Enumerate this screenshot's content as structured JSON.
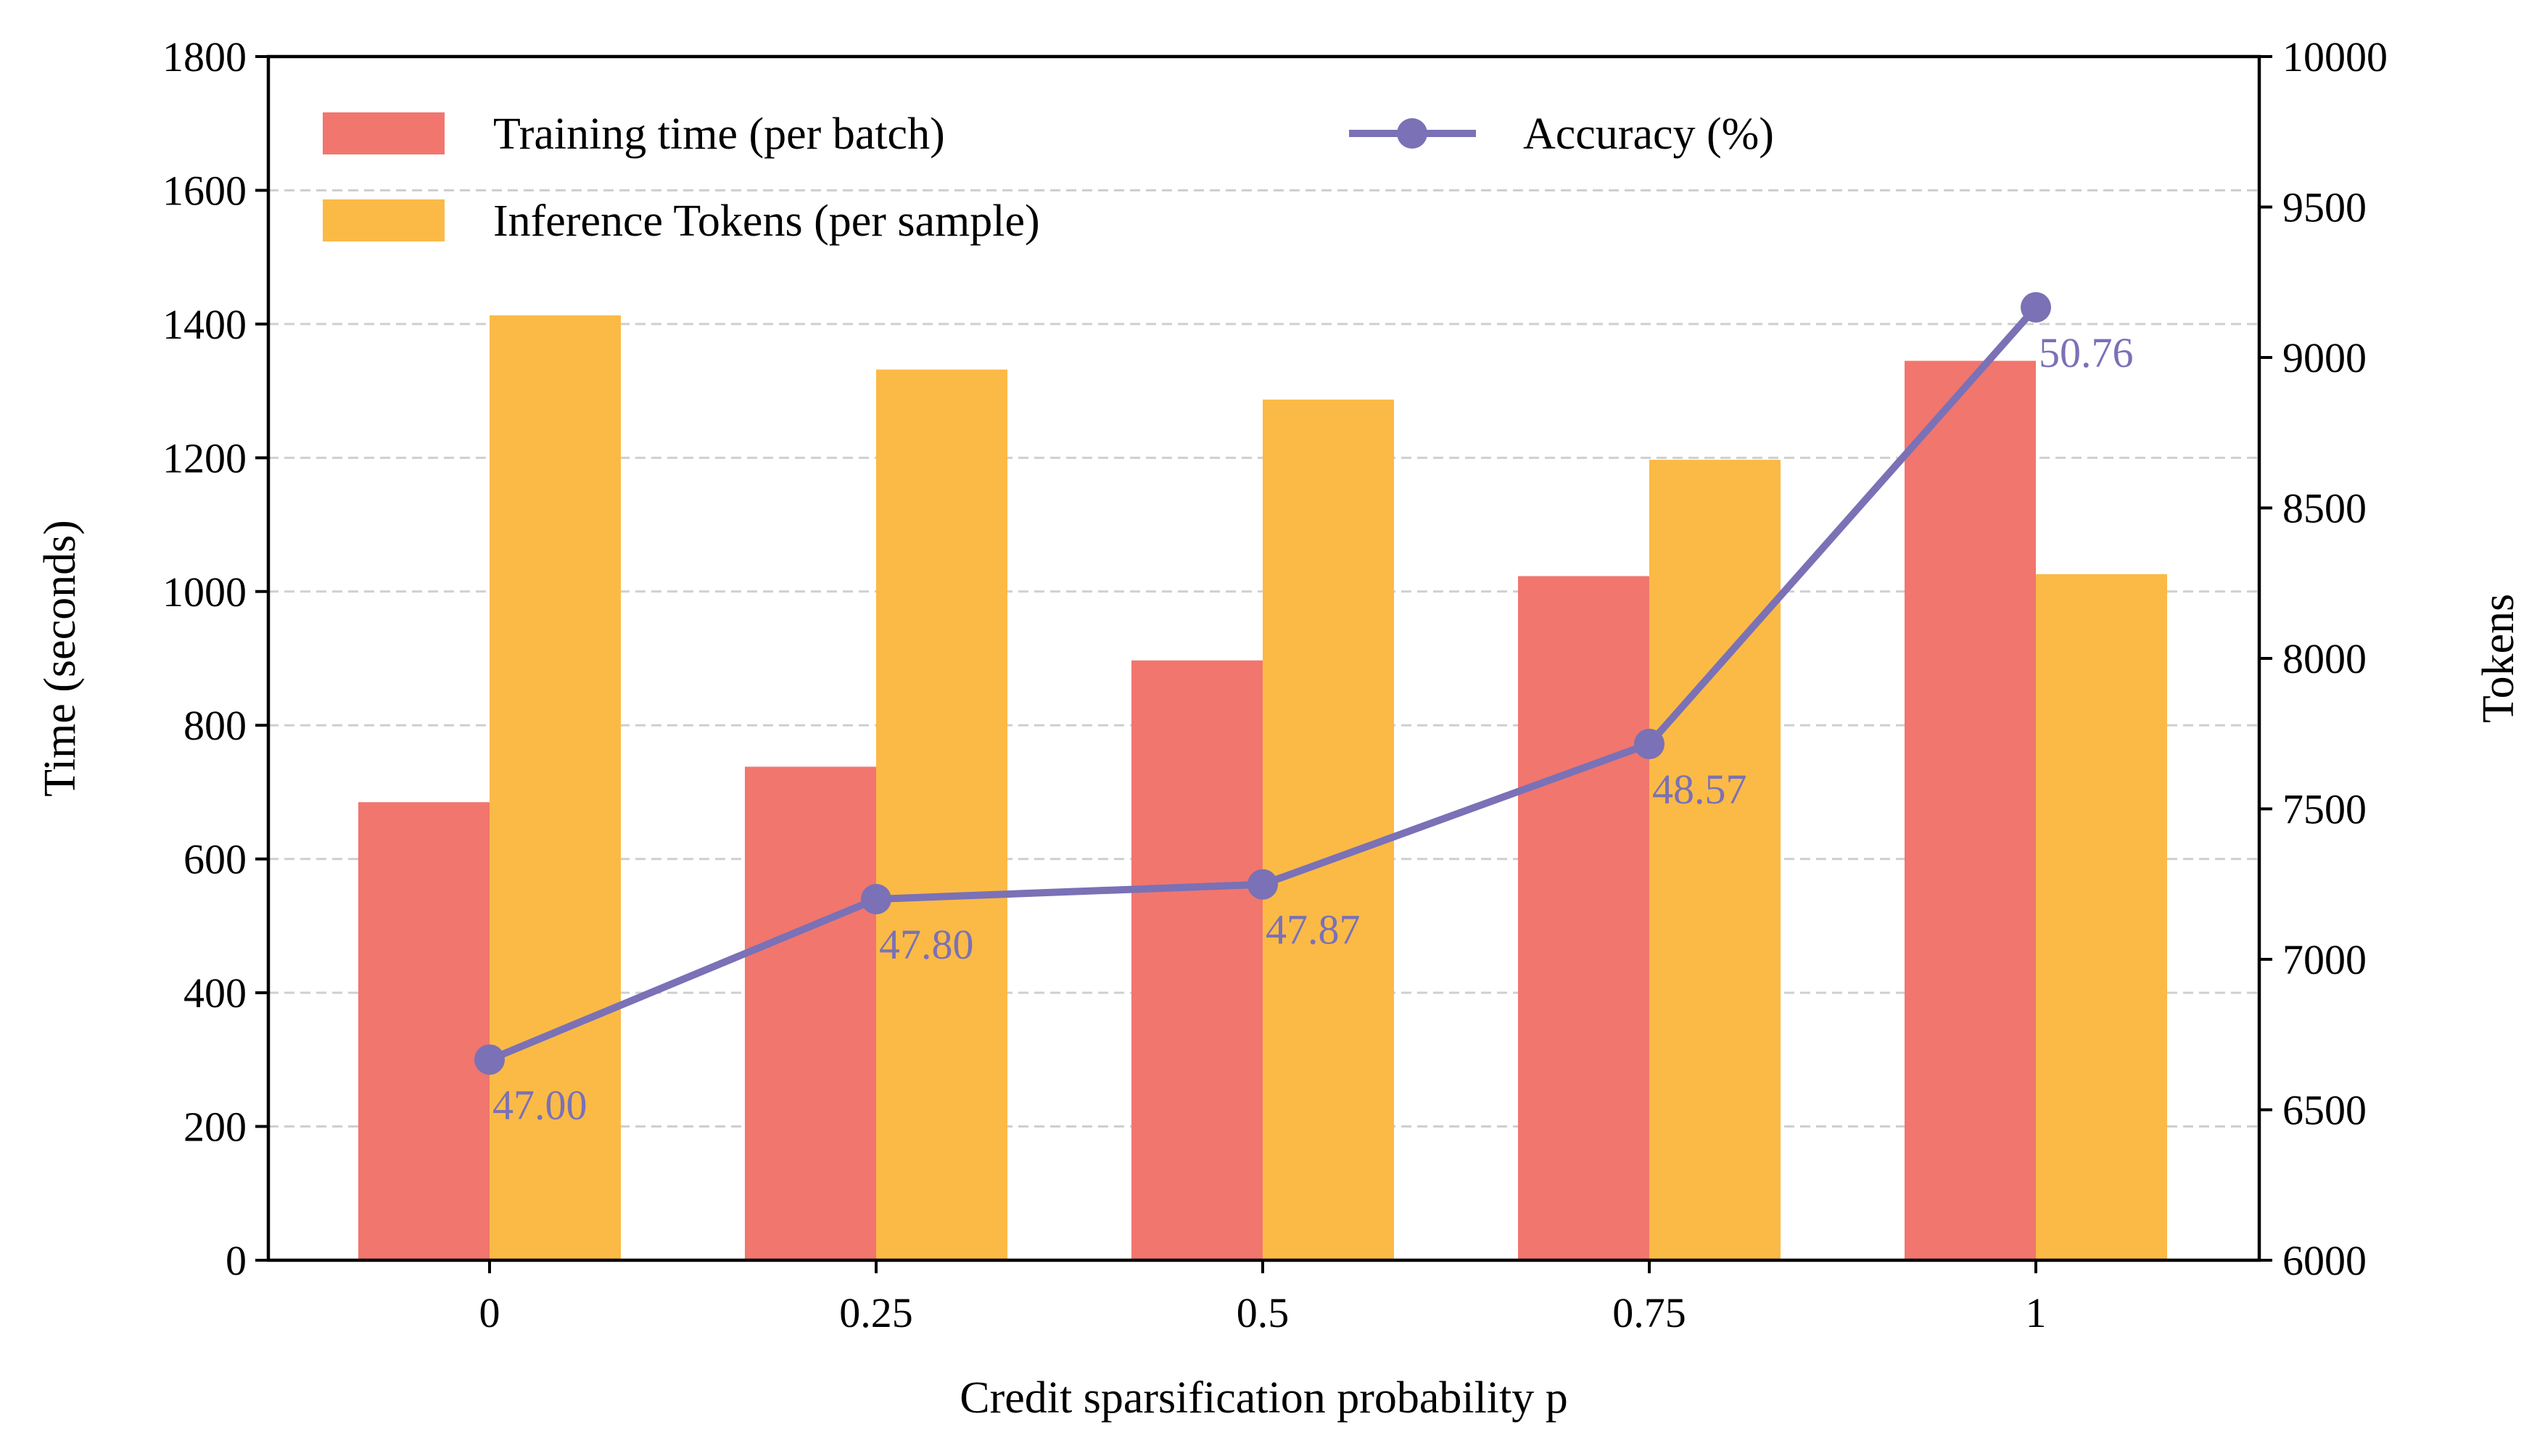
{
  "chart_data": {
    "type": "bar",
    "xlabel": "Credit sparsification probability p",
    "ylabel_left": "Time (seconds)",
    "ylabel_right": "Tokens",
    "categories": [
      "0",
      "0.25",
      "0.5",
      "0.75",
      "1"
    ],
    "ylim_left": [
      0,
      1800
    ],
    "ylim_right": [
      6000,
      10000
    ],
    "yticks_left": [
      "0",
      "200",
      "400",
      "600",
      "800",
      "1000",
      "1200",
      "1400",
      "1600",
      "1800"
    ],
    "yticks_right": [
      "6000",
      "6500",
      "7000",
      "7500",
      "8000",
      "8500",
      "9000",
      "9500",
      "10000"
    ],
    "grid": "horizontal dashed",
    "legend_position": "top-left",
    "series": [
      {
        "name": "Training time (per batch)",
        "kind": "bar",
        "axis": "left",
        "color": "#f1766e",
        "values": [
          685,
          738,
          897,
          1023,
          1345
        ]
      },
      {
        "name": "Inference Tokens (per sample)",
        "kind": "bar",
        "axis": "right",
        "color": "#fbba46",
        "values": [
          9140,
          8960,
          8860,
          8660,
          8280
        ]
      },
      {
        "name": "Accuracy (%)",
        "kind": "line",
        "axis": "left",
        "color": "#7a71b6",
        "values": [
          300,
          540,
          562,
          772,
          1425
        ],
        "labels": [
          "47.00",
          "47.80",
          "47.87",
          "48.57",
          "50.76"
        ]
      }
    ]
  }
}
